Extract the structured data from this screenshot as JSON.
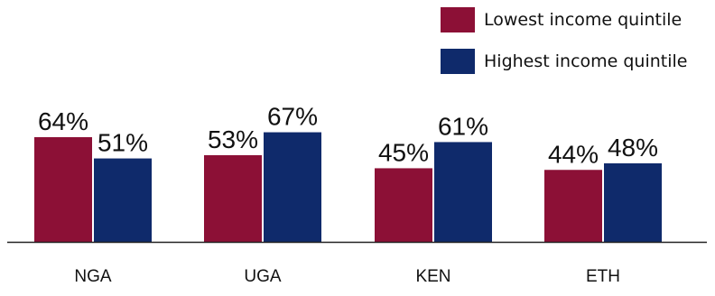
{
  "chart_data": {
    "type": "bar",
    "categories": [
      "NGA",
      "UGA",
      "KEN",
      "ETH"
    ],
    "series": [
      {
        "name": "Lowest income quintile",
        "values": [
          64,
          53,
          45,
          44
        ],
        "labels": [
          "64%",
          "53%",
          "45%",
          "44%"
        ],
        "color": "#8C1036"
      },
      {
        "name": "Highest income quintile",
        "values": [
          51,
          67,
          61,
          48
        ],
        "labels": [
          "51%",
          "67%",
          "61%",
          "48%"
        ],
        "color": "#0F2A6B"
      }
    ],
    "title": "",
    "xlabel": "",
    "ylabel": "",
    "ylim": [
      0,
      100
    ],
    "grid": false,
    "legend_position": "top-right"
  }
}
